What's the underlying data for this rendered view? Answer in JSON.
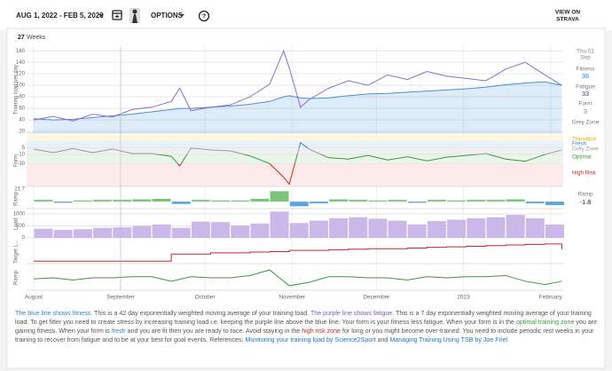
{
  "header": {
    "date_range": "AUG 1, 2022 - FEB 5, 2023",
    "options": "OPTIONS",
    "view_on": "VIEW ON",
    "strava": "STRAVA"
  },
  "weeks": {
    "count": 27,
    "unit": "Weeks"
  },
  "x_axis": {
    "xlim": [
      -2.5,
      188.5
    ],
    "xticks": [
      {
        "value": 0,
        "label": "August"
      },
      {
        "value": 31,
        "label": "September"
      },
      {
        "value": 61,
        "label": "October"
      },
      {
        "value": 92,
        "label": "November"
      },
      {
        "value": 122,
        "label": "December"
      },
      {
        "value": 153,
        "label": "2023"
      },
      {
        "value": 184,
        "label": "February"
      }
    ]
  },
  "chart_data": [
    {
      "type": "line",
      "ylabel": "Training load per day",
      "ylim": [
        17,
        168
      ],
      "yticks": [
        20,
        40,
        60,
        80,
        100,
        120,
        140,
        160
      ],
      "grid": true,
      "x": [
        0,
        7,
        14,
        21,
        28,
        35,
        42,
        49,
        52,
        56,
        63,
        70,
        77,
        84,
        89,
        91,
        95,
        98,
        105,
        112,
        119,
        126,
        133,
        140,
        147,
        154,
        161,
        168,
        175,
        182,
        188
      ],
      "series": [
        {
          "name": "Fitness",
          "color": "#4a90d9",
          "area": true,
          "values": [
            42,
            40,
            41,
            44,
            47,
            50,
            54,
            58,
            60,
            60,
            62,
            64,
            67,
            72,
            80,
            82,
            78,
            77,
            78,
            82,
            85,
            86,
            88,
            90,
            92,
            94,
            97,
            101,
            104,
            106,
            100
          ]
        },
        {
          "name": "Fatigue",
          "color": "#8e6cc9",
          "values": [
            40,
            46,
            38,
            50,
            45,
            58,
            62,
            72,
            95,
            56,
            62,
            66,
            80,
            102,
            160,
            130,
            62,
            75,
            95,
            108,
            100,
            118,
            110,
            124,
            116,
            112,
            108,
            128,
            140,
            118,
            100
          ]
        }
      ]
    },
    {
      "type": "line",
      "ylabel": "Form",
      "ylim": [
        -80,
        33
      ],
      "yticks": [
        5,
        -10,
        -30
      ],
      "grid": true,
      "zones": [
        {
          "name": "Transition",
          "from": 33,
          "to": 20,
          "color": "#e6a700",
          "bg": "#fff6dc"
        },
        {
          "name": "Fresh",
          "from": 20,
          "to": 5,
          "color": "#2e88d0",
          "bg": "#e6f1fb"
        },
        {
          "name": "Grey Zone",
          "from": 5,
          "to": -10,
          "color": "#999999",
          "bg": "#f0f0f0"
        },
        {
          "name": "Optimal",
          "from": -10,
          "to": -30,
          "color": "#3a9a3a",
          "bg": "#eaf6ea"
        },
        {
          "name": "High Risk",
          "from": -30,
          "to": -80,
          "color": "#c62828",
          "bg": "#fdeaea"
        }
      ],
      "x": [
        0,
        7,
        14,
        21,
        28,
        35,
        42,
        49,
        52,
        56,
        63,
        70,
        77,
        84,
        89,
        91,
        95,
        98,
        105,
        112,
        119,
        126,
        133,
        140,
        147,
        154,
        161,
        168,
        175,
        182,
        188
      ],
      "series": [
        {
          "values": [
            2,
            -6,
            3,
            -6,
            2,
            -8,
            -8,
            -14,
            -35,
            4,
            0,
            -2,
            -13,
            -30,
            -60,
            -75,
            16,
            2,
            -17,
            -20,
            -12,
            -22,
            -15,
            -24,
            -16,
            -12,
            -8,
            -20,
            -25,
            -10,
            0
          ]
        }
      ]
    },
    {
      "type": "bar",
      "ylabel": "Ramp",
      "ylim": [
        -12,
        21.7
      ],
      "yticks": [
        21.7
      ],
      "color": "#7cc47c",
      "negative_color": "#5aa5e0",
      "width": 7,
      "x": [
        0,
        7,
        14,
        21,
        28,
        35,
        42,
        49,
        56,
        63,
        70,
        77,
        84,
        91,
        98,
        105,
        112,
        119,
        126,
        133,
        140,
        147,
        154,
        161,
        168,
        175,
        182
      ],
      "values": [
        3,
        -2,
        2,
        3,
        3,
        4,
        5,
        -4,
        3,
        2,
        2,
        5,
        18,
        -8,
        -3,
        4,
        3,
        2,
        3,
        -2,
        3,
        2,
        3,
        3,
        4,
        -3,
        -6
      ]
    },
    {
      "type": "bar",
      "ylabel": "Load",
      "ylim": [
        0,
        1150
      ],
      "yticks": [
        0,
        500,
        1000
      ],
      "grid": true,
      "color": "#c9b8e8",
      "width": 7,
      "x": [
        0,
        7,
        14,
        21,
        28,
        35,
        42,
        49,
        56,
        63,
        70,
        77,
        84,
        91,
        98,
        105,
        112,
        119,
        126,
        133,
        140,
        147,
        154,
        161,
        168,
        175,
        182
      ],
      "values": [
        380,
        330,
        360,
        420,
        440,
        500,
        560,
        420,
        680,
        660,
        520,
        600,
        1100,
        620,
        720,
        820,
        860,
        800,
        720,
        560,
        700,
        760,
        820,
        860,
        960,
        820,
        560
      ]
    },
    {
      "type": "step",
      "ylabel": "Target L...",
      "ylim": [
        0,
        100
      ],
      "color": "#c62828",
      "x": [
        0,
        7,
        14,
        21,
        28,
        35,
        42,
        49,
        56,
        63,
        70,
        77,
        84,
        91,
        98,
        105,
        112,
        119,
        126,
        133,
        140,
        147,
        154,
        161,
        168,
        175,
        182,
        188
      ],
      "values": [
        10,
        10,
        10,
        10,
        10,
        10,
        10,
        40,
        40,
        45,
        45,
        48,
        50,
        55,
        55,
        58,
        60,
        62,
        62,
        65,
        68,
        70,
        72,
        75,
        78,
        80,
        82,
        60
      ]
    },
    {
      "type": "line",
      "ylabel": "Ramp",
      "ylim": [
        -10,
        12
      ],
      "x": [
        0,
        7,
        14,
        21,
        28,
        35,
        42,
        49,
        56,
        63,
        70,
        77,
        84,
        91,
        98,
        105,
        112,
        119,
        126,
        133,
        140,
        147,
        154,
        161,
        168,
        175,
        182,
        188
      ],
      "series": [
        {
          "color": "#3a9a3a",
          "values": [
            0,
            1,
            -1,
            1,
            1,
            2,
            2,
            -2,
            2,
            1,
            1,
            3,
            8,
            -6,
            -3,
            2,
            2,
            1,
            1,
            -1,
            2,
            1,
            2,
            2,
            3,
            -2,
            -5,
            -2
          ]
        }
      ]
    }
  ],
  "sidebar": {
    "day": "Thu 01",
    "month": "Sep",
    "fitness_label": "Fitness",
    "fitness": 36,
    "fatigue_label": "Fatigue",
    "fatigue": 33,
    "form_label": "Form",
    "form": 3,
    "zone": "Grey Zone",
    "ramp_label": "Ramp",
    "ramp": -1.8
  },
  "footer": {
    "segments": [
      {
        "text": "The blue line shows fitness.",
        "color": "#2e88d0"
      },
      {
        "text": " This is a 42 day exponentially weighted moving average of your training load. "
      },
      {
        "text": "The purple line shows fatigue.",
        "color": "#7e57c2"
      },
      {
        "text": " This is a 7 day exponentially weighted moving average of your training load. To get fitter you need to create stress by increasing training load i.e. keeping the purple line above the blue line. Your form is your fitness less fatigue. When your form is in the "
      },
      {
        "text": "optimal training zone",
        "color": "#3a9a3a"
      },
      {
        "text": " you are gaining fitness. When your form is "
      },
      {
        "text": "fresh",
        "color": "#2e88d0"
      },
      {
        "text": " and you are fit then you are ready to race. Avoid staying in the "
      },
      {
        "text": "high risk zone",
        "color": "#c62828"
      },
      {
        "text": " for long or you might become over-trained. You need to include periodic rest weeks in your training to recover from fatigue and to be at your best for goal events. References: "
      },
      {
        "text": "Monitoring your training load by Science2Sport",
        "color": "#1a73c8"
      },
      {
        "text": " and "
      },
      {
        "text": "Managing Training Using TSB by Joe Friel",
        "color": "#1a73c8"
      }
    ]
  }
}
